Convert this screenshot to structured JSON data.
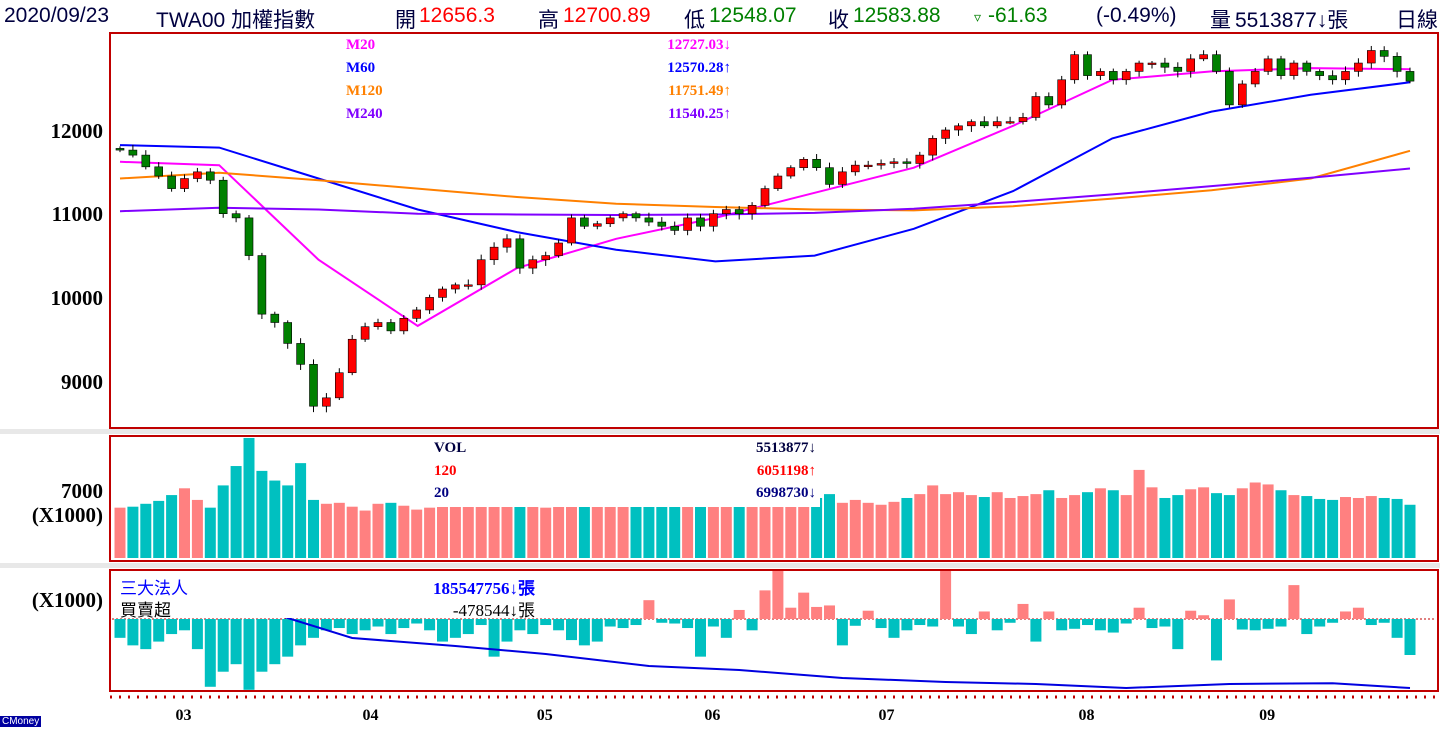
{
  "header": {
    "date": "2020/09/23",
    "symbol": "TWA00 加權指數",
    "open_label": "開",
    "open": "12656.3",
    "high_label": "高",
    "high": "12700.89",
    "low_label": "低",
    "low": "12548.07",
    "close_label": "收",
    "close": "12583.88",
    "change_icon": "▿",
    "change": "-61.63",
    "change_pct": "(-0.49%)",
    "volume_label": "量",
    "volume": "5513877↓張",
    "period": "日線"
  },
  "price_legend": [
    {
      "label": "M20",
      "value": "12727.03↓",
      "color": "#ff00ff"
    },
    {
      "label": "M60",
      "value": "12570.28↑",
      "color": "#0000ff"
    },
    {
      "label": "M120",
      "value": "11751.49↑",
      "color": "#ff8000"
    },
    {
      "label": "M240",
      "value": "11540.25↑",
      "color": "#8000ff"
    }
  ],
  "volume_legend": [
    {
      "label": "VOL",
      "value": "5513877↓",
      "color": "#000040"
    },
    {
      "label": "120",
      "value": "6051198↑",
      "color": "#ff0000"
    },
    {
      "label": "20",
      "value": "6998730↓",
      "color": "#000080"
    }
  ],
  "inst_legend": [
    {
      "label": "三大法人",
      "value": "185547756↓張",
      "color": "#0000ff"
    },
    {
      "label": "買賣超",
      "value": "-478544↓張",
      "color": "#000000"
    }
  ],
  "y_labels": {
    "price": [
      "12000",
      "11000",
      "10000",
      "9000"
    ],
    "volume": [
      "7000",
      "(X1000)"
    ],
    "inst": "(X1000)"
  },
  "months": [
    {
      "label": "03",
      "index": 5
    },
    {
      "label": "04",
      "index": 19.5
    },
    {
      "label": "05",
      "index": 33
    },
    {
      "label": "06",
      "index": 46
    },
    {
      "label": "07",
      "index": 59.5
    },
    {
      "label": "08",
      "index": 75
    },
    {
      "label": "09",
      "index": 89
    }
  ],
  "logo": "CMoney",
  "colors": {
    "up": "#ff0000",
    "down": "#008000",
    "vol_up": "#ff8080",
    "vol_down": "#00c0c0",
    "frame": "#c00000"
  },
  "chart_data": {
    "type": "candlestick",
    "title": "TWA00 加權指數 日線",
    "ylim": [
      8500,
      13100
    ],
    "closes": [
      11760,
      11700,
      11560,
      11450,
      11300,
      11420,
      11500,
      11400,
      11000,
      10950,
      10500,
      9800,
      9700,
      9450,
      9200,
      8700,
      8800,
      9100,
      9500,
      9650,
      9700,
      9600,
      9750,
      9850,
      10000,
      10100,
      10150,
      10150,
      10450,
      10600,
      10700,
      10350,
      10450,
      10500,
      10650,
      10950,
      10850,
      10880,
      10950,
      11000,
      10950,
      10900,
      10850,
      10800,
      10950,
      10850,
      11000,
      11050,
      11000,
      11100,
      11300,
      11450,
      11550,
      11650,
      11550,
      11350,
      11500,
      11580,
      11580,
      11600,
      11620,
      11600,
      11700,
      11900,
      12000,
      12050,
      12100,
      12050,
      12100,
      12100,
      12150,
      12400,
      12300,
      12600,
      12900,
      12650,
      12700,
      12600,
      12700,
      12800,
      12800,
      12750,
      12700,
      12850,
      12900,
      12700,
      12300,
      12550,
      12700,
      12850,
      12650,
      12800,
      12700,
      12650,
      12600,
      12700,
      12800,
      12950,
      12880,
      12700,
      12584
    ],
    "moving_averages": [
      {
        "name": "M20",
        "color": "#ff00ff",
        "values": [
          11620,
          11580,
          10450,
          9660,
          10350,
          10700,
          10950,
          11250,
          11550,
          12050,
          12600,
          12700,
          12740,
          12727
        ]
      },
      {
        "name": "M60",
        "color": "#0000ff",
        "values": [
          11820,
          11790,
          11420,
          11050,
          10780,
          10570,
          10430,
          10500,
          10820,
          11270,
          11900,
          12220,
          12420,
          12570
        ]
      },
      {
        "name": "M120",
        "color": "#ff8000",
        "values": [
          11420,
          11490,
          11400,
          11300,
          11200,
          11120,
          11080,
          11050,
          11040,
          11090,
          11180,
          11280,
          11420,
          11751
        ]
      },
      {
        "name": "M240",
        "color": "#8000ff",
        "values": [
          11030,
          11070,
          11050,
          11000,
          10990,
          10985,
          10990,
          11010,
          11060,
          11140,
          11230,
          11330,
          11430,
          11540
        ]
      }
    ],
    "volume": {
      "unit": "X1000",
      "ylim": [
        0,
        12500
      ],
      "values": [
        5200,
        5300,
        5600,
        5900,
        6500,
        7200,
        6000,
        5200,
        7500,
        9500,
        12400,
        9000,
        8000,
        7500,
        9800,
        6000,
        5600,
        5700,
        5300,
        4900,
        5600,
        5700,
        5400,
        5000,
        5200,
        5500,
        5800,
        6000,
        5700,
        5400,
        5500,
        5800,
        5300,
        5200,
        5400,
        5600,
        5500,
        5300,
        5500,
        5400,
        5600,
        5500,
        5300,
        5400,
        5500,
        5700,
        5800,
        5600,
        5500,
        5400,
        5600,
        5600,
        5500,
        5700,
        6200,
        6600,
        5700,
        6000,
        5700,
        5500,
        5800,
        6200,
        6600,
        7500,
        6600,
        6800,
        6500,
        6300,
        6800,
        6200,
        6400,
        6600,
        7000,
        6200,
        6500,
        6800,
        7200,
        7000,
        6500,
        9100,
        7300,
        6200,
        6500,
        7100,
        7300,
        6700,
        6500,
        7200,
        7800,
        7600,
        7000,
        6500,
        6400,
        6100,
        6000,
        6300,
        6200,
        6400,
        6200,
        6100,
        5500
      ]
    },
    "institutional_net": {
      "unit": "X1000",
      "ylim": [
        -943,
        650
      ],
      "values": [
        -250,
        -350,
        -400,
        -300,
        -200,
        -150,
        -400,
        -900,
        -700,
        -600,
        -940,
        -700,
        -600,
        -500,
        -350,
        -250,
        -150,
        -120,
        -200,
        -150,
        -100,
        -200,
        -120,
        -60,
        -150,
        -300,
        -250,
        -200,
        -80,
        -500,
        -300,
        -150,
        -200,
        -80,
        -150,
        -280,
        -350,
        -300,
        -100,
        -120,
        -80,
        250,
        -50,
        -60,
        -120,
        -500,
        -100,
        -250,
        120,
        -150,
        380,
        650,
        150,
        350,
        160,
        180,
        -350,
        -90,
        110,
        -120,
        -250,
        -150,
        -80,
        -100,
        660,
        -100,
        -200,
        100,
        -150,
        -50,
        200,
        -300,
        100,
        -150,
        -130,
        -80,
        -150,
        -180,
        -60,
        150,
        -120,
        -100,
        -400,
        110,
        50,
        -550,
        260,
        -140,
        -150,
        -130,
        -100,
        450,
        -200,
        -100,
        -50,
        100,
        150,
        -80,
        -50,
        -250,
        -478
      ]
    },
    "institutional_cumulative_millions": [
      [
        11,
        205
      ],
      [
        18,
        198
      ],
      [
        26,
        196
      ],
      [
        33,
        194
      ],
      [
        41,
        191
      ],
      [
        48,
        190
      ],
      [
        56,
        188
      ],
      [
        64,
        187
      ],
      [
        71,
        186.5
      ],
      [
        78,
        185.5
      ],
      [
        86,
        186.5
      ],
      [
        94,
        186.7
      ],
      [
        100,
        185.5
      ]
    ]
  }
}
